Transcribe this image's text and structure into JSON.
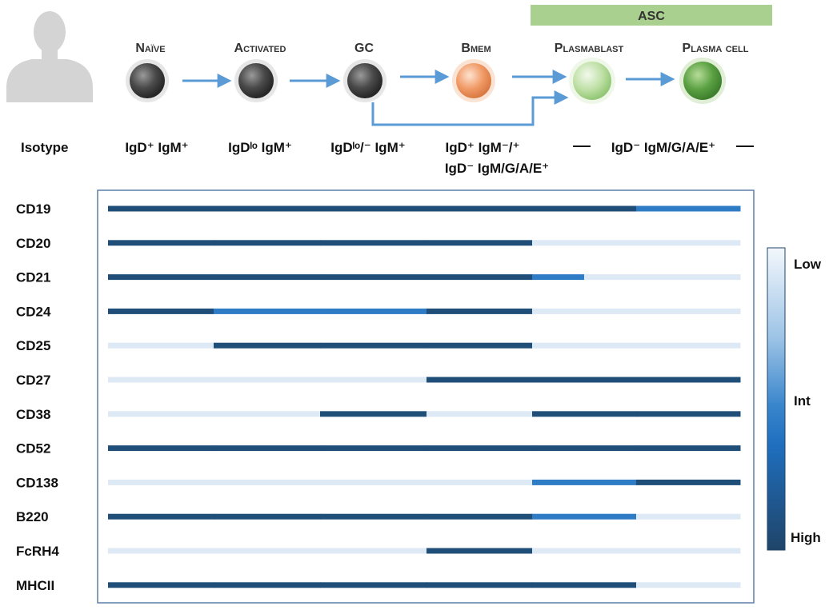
{
  "asc_label": "ASC",
  "stages": [
    {
      "name": "Naïve",
      "isotype_line1": "IgD⁺ IgM⁺",
      "isotype_line2": ""
    },
    {
      "name": "Activated",
      "isotype_line1": "IgDˡᵒ IgM⁺",
      "isotype_line2": ""
    },
    {
      "name": "GC",
      "isotype_line1": "IgDˡᵒ/⁻ IgM⁺",
      "isotype_line2": ""
    },
    {
      "name": "Bmem",
      "isotype_line1": "IgD⁺ IgM⁻/⁺",
      "isotype_line2": "IgD⁻ IgM/G/A/E⁺"
    },
    {
      "name": "Plasmablast",
      "isotype_line1": "",
      "isotype_line2": ""
    },
    {
      "name": "Plasma cell",
      "isotype_line1": "",
      "isotype_line2": ""
    }
  ],
  "asc_isotype": "IgD⁻ IgM/G/A/E⁺",
  "isotype_label": "Isotype",
  "legend": {
    "low": "Low",
    "int": "Int",
    "high": "High"
  },
  "level_colors": {
    "low": "#dde9f5",
    "int": "#2f7cc6",
    "high": "#1f4e79"
  },
  "cell_colors": {
    "naive": "#5a5a5a",
    "activated": "#5a5a5a",
    "gc": "#5a5a5a",
    "bmem": "#ef9b6a",
    "plasmablast": "#b9dca0",
    "plasma_cell": "#5aa042"
  },
  "markers": [
    {
      "name": "CD19",
      "levels": [
        "high",
        "high",
        "high",
        "high",
        "high",
        "int"
      ]
    },
    {
      "name": "CD20",
      "levels": [
        "high",
        "high",
        "high",
        "high",
        "low",
        "low"
      ]
    },
    {
      "name": "CD21",
      "levels": [
        "high",
        "high",
        "high",
        "high",
        "int/low",
        "low"
      ]
    },
    {
      "name": "CD24",
      "levels": [
        "high",
        "int",
        "int",
        "high",
        "low",
        "low"
      ]
    },
    {
      "name": "CD25",
      "levels": [
        "low",
        "high",
        "high",
        "high",
        "low",
        "low"
      ]
    },
    {
      "name": "CD27",
      "levels": [
        "low",
        "low",
        "low",
        "high",
        "high",
        "high"
      ]
    },
    {
      "name": "CD38",
      "levels": [
        "low",
        "low",
        "high",
        "low",
        "high",
        "high"
      ]
    },
    {
      "name": "CD52",
      "levels": [
        "high",
        "high",
        "high",
        "high",
        "high",
        "high"
      ]
    },
    {
      "name": "CD138",
      "levels": [
        "low",
        "low",
        "low",
        "low",
        "int",
        "high"
      ]
    },
    {
      "name": "B220",
      "levels": [
        "high",
        "high",
        "high",
        "high",
        "int",
        "low"
      ]
    },
    {
      "name": "FcRH4",
      "levels": [
        "low",
        "low",
        "low",
        "high",
        "low",
        "low"
      ]
    },
    {
      "name": "MHCII",
      "levels": [
        "high",
        "high",
        "high",
        "high",
        "high",
        "low"
      ]
    }
  ]
}
